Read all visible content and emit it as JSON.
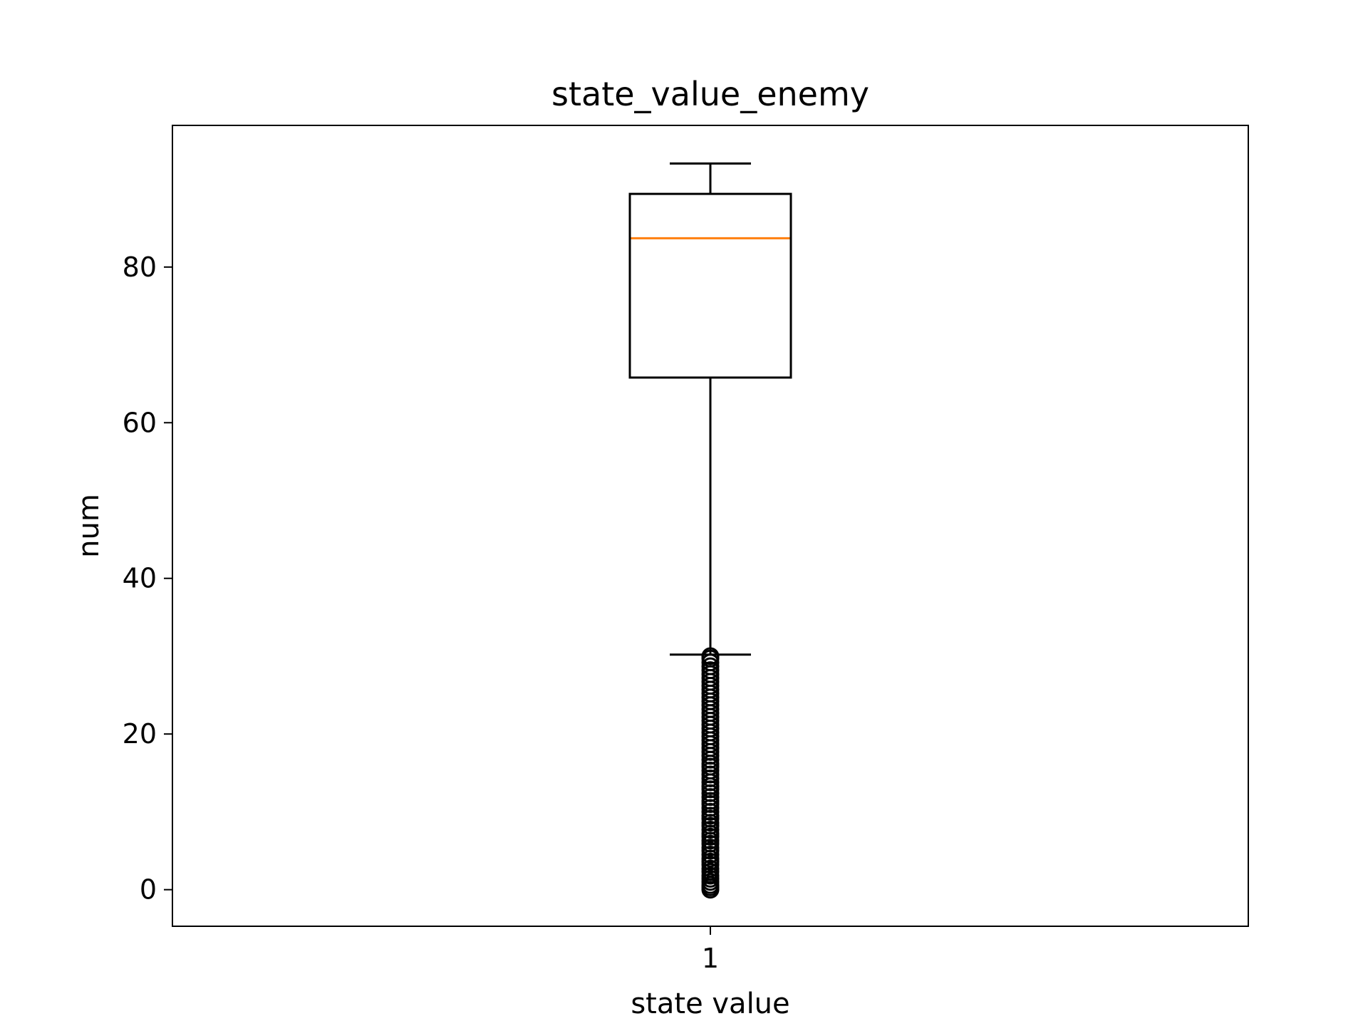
{
  "chart_data": {
    "type": "box",
    "title": "state_value_enemy",
    "xlabel": "state value",
    "ylabel": "num",
    "categories": [
      "1"
    ],
    "ylim": [
      -4.7,
      98.2
    ],
    "yticks": [
      0,
      20,
      40,
      60,
      80
    ],
    "grid": false,
    "boxes": [
      {
        "name": "1",
        "whisker_low": 30.2,
        "q1": 65.8,
        "median": 83.7,
        "q3": 89.4,
        "whisker_high": 93.3,
        "outliers": [
          0,
          0.3,
          0.6,
          1,
          1.4,
          1.8,
          2.3,
          2.7,
          3.2,
          3.6,
          4,
          4.5,
          5,
          5.4,
          5.9,
          6.3,
          6.8,
          7.2,
          7.7,
          8.2,
          8.6,
          9.1,
          9.5,
          10,
          10.5,
          11,
          11.4,
          11.9,
          12.4,
          12.9,
          13.3,
          13.8,
          14.3,
          14.8,
          15.3,
          15.8,
          16.2,
          16.7,
          17.2,
          17.7,
          18.2,
          18.7,
          19.2,
          19.7,
          20.2,
          20.7,
          21.2,
          21.7,
          22.2,
          22.7,
          23.2,
          23.7,
          24.2,
          24.7,
          25.2,
          25.7,
          26.2,
          26.7,
          27.2,
          27.7,
          28.2,
          28.7,
          29.2,
          29.7,
          30
        ]
      }
    ],
    "colors": {
      "box": "#000000",
      "median": "#ff7f0e",
      "outlier": "#000000"
    }
  }
}
